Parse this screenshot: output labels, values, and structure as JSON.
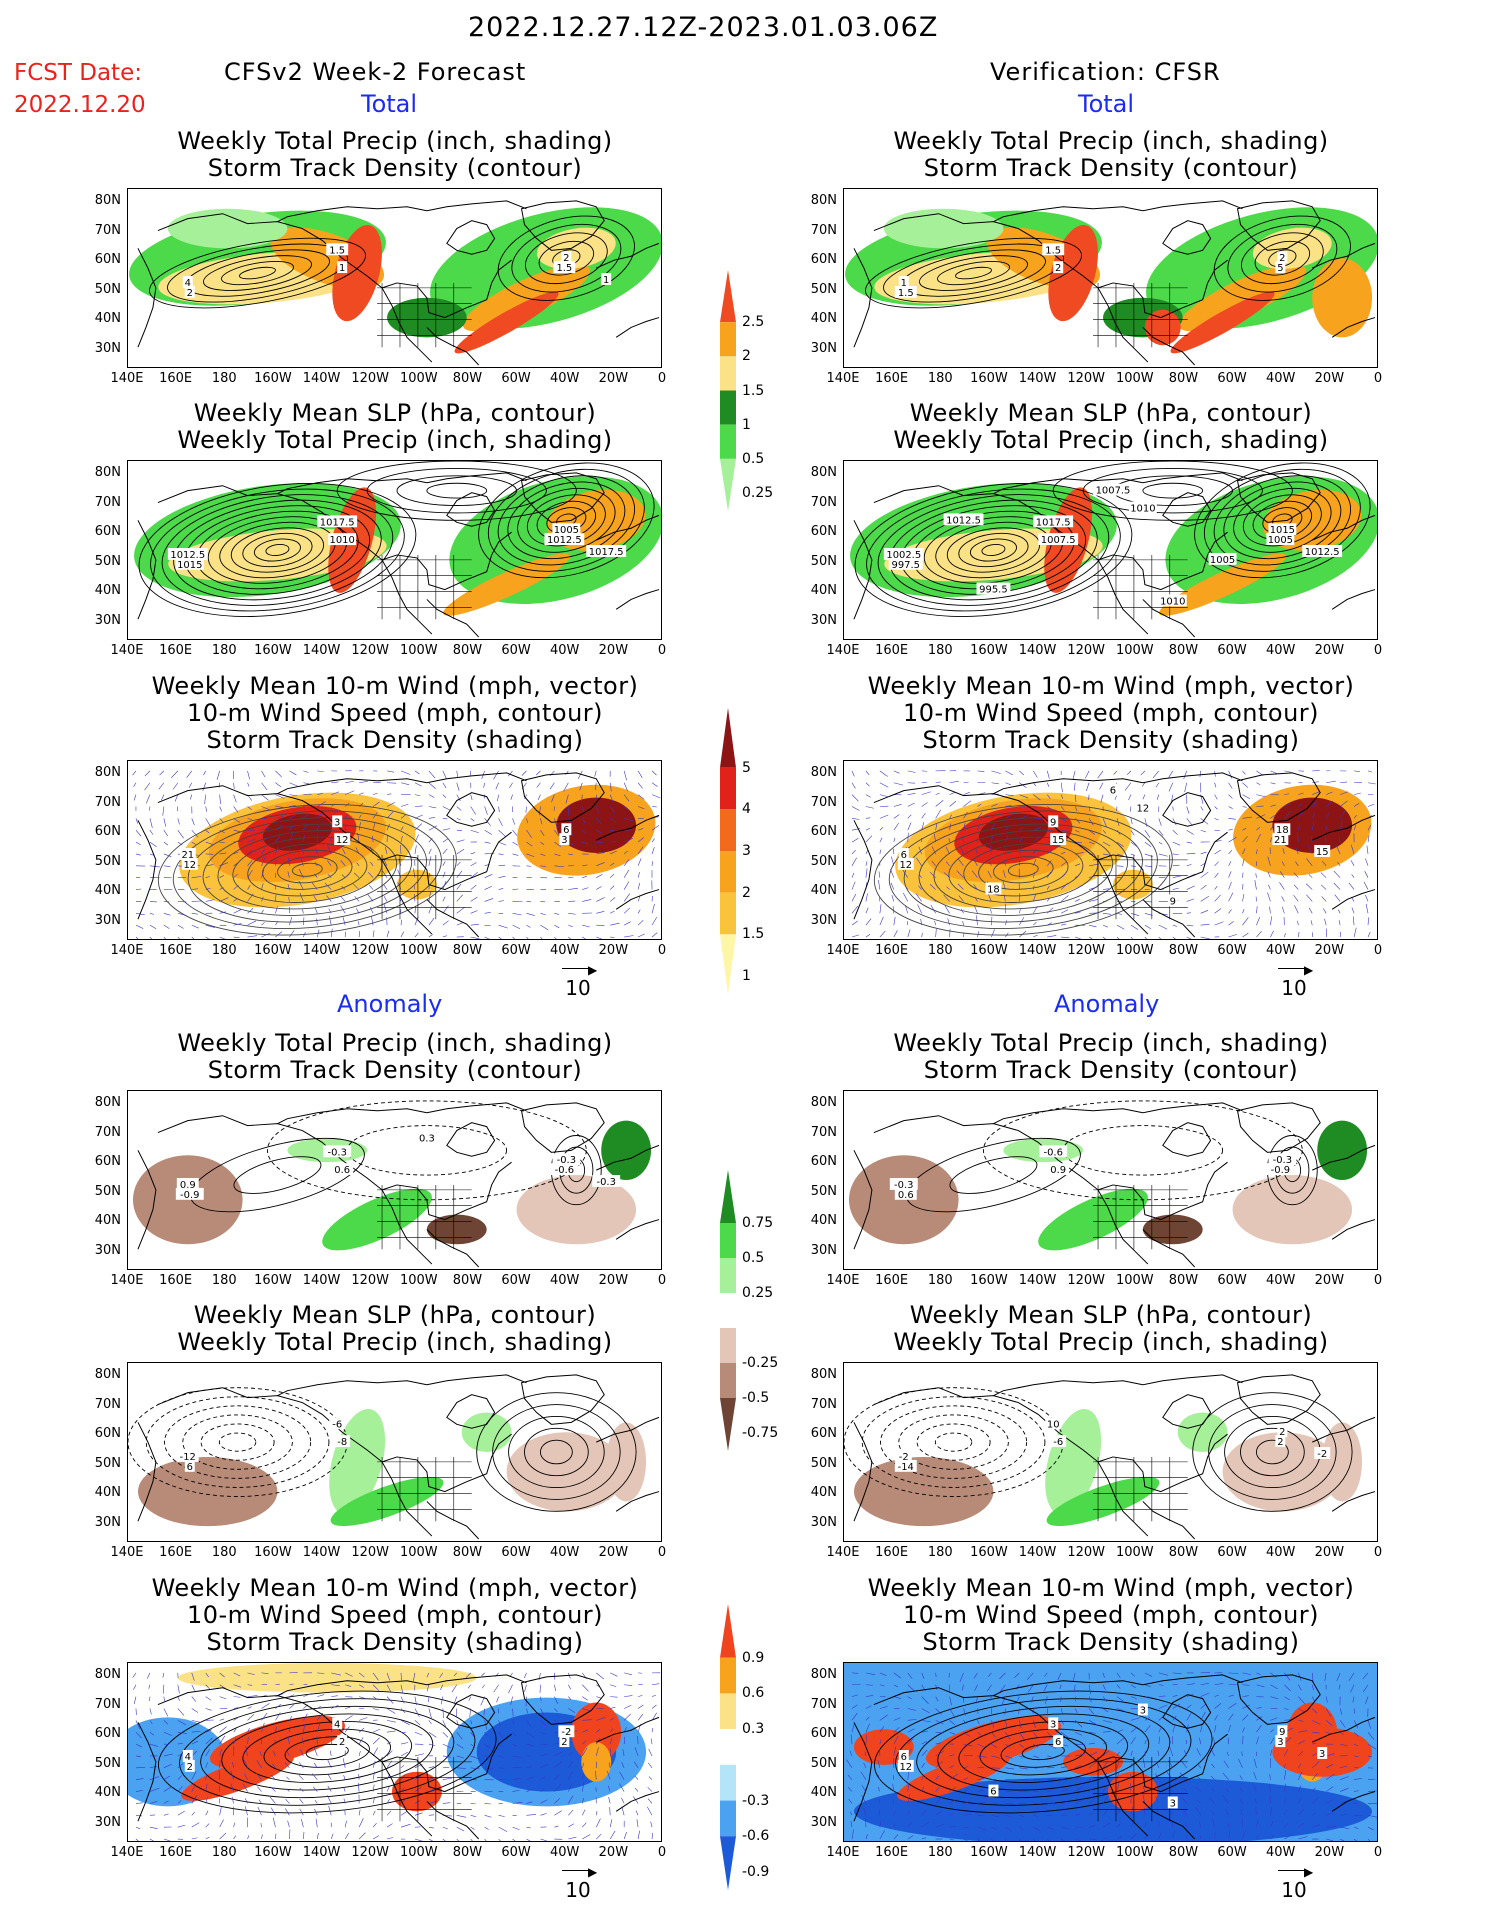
{
  "header": {
    "period": "2022.12.27.12Z-2023.01.03.06Z",
    "fcst_label": "FCST Date:",
    "fcst_date": "2022.12.20",
    "left_title": "CFSv2 Week-2 Forecast",
    "right_title": "Verification: CFSR",
    "total_label": "Total",
    "anomaly_label": "Anomaly"
  },
  "panel_titles": {
    "precip_storm": [
      "Weekly Total Precip (inch, shading)",
      "Storm Track Density (contour)"
    ],
    "slp_precip": [
      "Weekly Mean SLP (hPa, contour)",
      "Weekly Total Precip (inch, shading)"
    ],
    "wind_storm": [
      "Weekly Mean 10-m Wind (mph, vector)",
      "10-m Wind Speed (mph, contour)",
      "Storm Track Density (shading)"
    ]
  },
  "axes": {
    "lat_labels": [
      "80N",
      "70N",
      "60N",
      "50N",
      "40N",
      "30N"
    ],
    "lon_labels": [
      "140E",
      "160E",
      "180",
      "160W",
      "140W",
      "120W",
      "100W",
      "80W",
      "60W",
      "40W",
      "20W",
      "0"
    ]
  },
  "vector_key": "10",
  "colorbars": {
    "total_precip": {
      "labels": [
        "2.5",
        "2",
        "1.5",
        "1",
        "0.5",
        "0.25"
      ],
      "colors": [
        "#f04a22",
        "#f7a31e",
        "#fbe286",
        "#1e8c22",
        "#4cd94a",
        "#a6f09a"
      ]
    },
    "total_storm": {
      "labels": [
        "5",
        "4",
        "3",
        "2",
        "1.5",
        "1"
      ],
      "colors": [
        "#8c1414",
        "#e0221a",
        "#f46a1c",
        "#f7a31e",
        "#fbc23c",
        "#fdf6a6"
      ]
    },
    "anom_precip": {
      "labels": [
        "0.75",
        "0.5",
        "0.25",
        "-0.25",
        "-0.5",
        "-0.75"
      ],
      "colors": [
        "#1e8c22",
        "#4cd94a",
        "#a6f09a",
        "#ffffff",
        "#e4c6b8",
        "#b88a78",
        "#6e4434"
      ]
    },
    "anom_storm": {
      "labels": [
        "0.9",
        "0.6",
        "0.3",
        "-0.3",
        "-0.6",
        "-0.9"
      ],
      "colors": [
        "#f0441e",
        "#f7a31e",
        "#fbe286",
        "#ffffff",
        "#b4e4f8",
        "#4aa2f0",
        "#1c5ad8"
      ]
    }
  },
  "contour_labels": {
    "fc_t1": [
      "1.5",
      "1",
      "4",
      "2",
      "2",
      "1.5",
      "1"
    ],
    "vf_t1": [
      "1.5",
      "2",
      "1",
      "1.5",
      "2",
      "5"
    ],
    "fc_t2": [
      "1017.5",
      "1010",
      "1012.5",
      "1015",
      "1005",
      "1012.5",
      "1017.5"
    ],
    "vf_t2": [
      "1017.5",
      "1007.5",
      "1002.5",
      "997.5",
      "1015",
      "1005",
      "1012.5",
      "1010",
      "995.5",
      "1010",
      "1007.5",
      "1005",
      "1012.5"
    ],
    "fc_t3": [
      "3",
      "12",
      "21",
      "12",
      "6",
      "3"
    ],
    "vf_t3": [
      "9",
      "15",
      "6",
      "12",
      "18",
      "21",
      "15",
      "12",
      "18",
      "9",
      "6"
    ],
    "fc_a1": [
      "-0.3",
      "0.6",
      "0.9",
      "-0.9",
      "-0.3",
      "-0.6",
      "-0.3",
      "0.3"
    ],
    "vf_a1": [
      "-0.6",
      "0.9",
      "-0.3",
      "0.6",
      "-0.3",
      "-0.9"
    ],
    "fc_a2": [
      "-6",
      "-8",
      "-12",
      "6"
    ],
    "vf_a2": [
      "10",
      "-6",
      "-2",
      "-14",
      "2",
      "2",
      "-2"
    ],
    "fc_a3": [
      "4",
      "2",
      "4",
      "2",
      "-2",
      "2"
    ],
    "vf_a3": [
      "3",
      "6",
      "6",
      "12",
      "9",
      "3",
      "3",
      "3",
      "6",
      "3"
    ]
  }
}
